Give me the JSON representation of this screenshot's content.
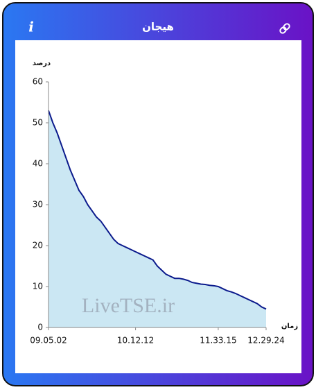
{
  "chart_data": {
    "type": "area",
    "title": "هیجان",
    "info": "i",
    "y_label": "درصد",
    "x_label": "زمان",
    "watermark": "LiveTSE.ir",
    "categories": [
      "09.05.02",
      null,
      null,
      null,
      null,
      null,
      null,
      null,
      null,
      null,
      null,
      null,
      null,
      null,
      null,
      null,
      null,
      null,
      null,
      null,
      "10.12.12",
      null,
      null,
      null,
      null,
      null,
      null,
      null,
      null,
      null,
      null,
      null,
      null,
      null,
      null,
      null,
      null,
      null,
      null,
      "11.33.15",
      null,
      null,
      null,
      null,
      null,
      null,
      null,
      null,
      null,
      null,
      "12.29.24"
    ],
    "values": [
      53,
      50,
      47.5,
      44.5,
      41.5,
      38.5,
      36,
      33.5,
      32,
      30,
      28.5,
      27,
      26,
      24.5,
      23,
      21.5,
      20.5,
      20,
      19.5,
      19,
      18.5,
      18,
      17.5,
      17,
      16.5,
      15,
      14,
      13,
      12.5,
      12,
      12,
      11.8,
      11.5,
      11,
      10.8,
      10.6,
      10.5,
      10.3,
      10.2,
      10,
      9.5,
      9,
      8.7,
      8.3,
      7.8,
      7.3,
      6.8,
      6.3,
      5.8,
      5,
      4.5
    ],
    "color": "#0b1a8c",
    "fill": "#cbe7f3",
    "ylim": [
      0,
      60
    ],
    "yticks": [
      0,
      10,
      20,
      30,
      40,
      50,
      60
    ]
  }
}
